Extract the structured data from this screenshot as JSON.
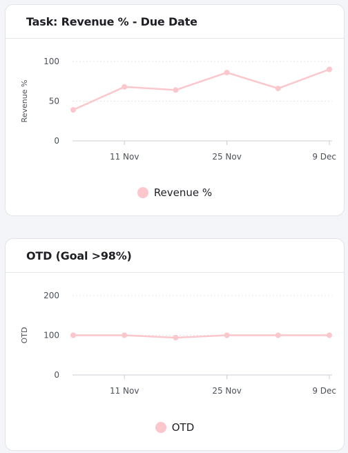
{
  "cards": [
    {
      "title": "Task: Revenue % - Due Date",
      "legend_label": "Revenue %",
      "legend_color": "#fbc6cc",
      "chart_data": {
        "type": "line",
        "title": "Task: Revenue % - Due Date",
        "xlabel": "",
        "ylabel": "Revenue %",
        "x_ticks": [
          "11 Nov",
          "25 Nov",
          "9 Dec"
        ],
        "y_ticks": [
          0,
          50,
          100
        ],
        "ylim": [
          0,
          100
        ],
        "grid": "horizontal dotted",
        "legend_position": "bottom-center",
        "series": [
          {
            "name": "Revenue %",
            "color": "#fbc6cc",
            "x": [
              "4 Nov",
              "11 Nov",
              "18 Nov",
              "25 Nov",
              "2 Dec",
              "9 Dec"
            ],
            "values": [
              39,
              68,
              64,
              86,
              66,
              90
            ]
          }
        ]
      }
    },
    {
      "title": "OTD (Goal >98%)",
      "legend_label": "OTD",
      "legend_color": "#fbc6cc",
      "chart_data": {
        "type": "line",
        "title": "OTD (Goal >98%)",
        "xlabel": "",
        "ylabel": "OTD",
        "x_ticks": [
          "11 Nov",
          "25 Nov",
          "9 Dec"
        ],
        "y_ticks": [
          0,
          100,
          200
        ],
        "ylim": [
          0,
          200
        ],
        "grid": "horizontal dotted",
        "legend_position": "bottom-center",
        "series": [
          {
            "name": "OTD",
            "color": "#fbc6cc",
            "x": [
              "4 Nov",
              "11 Nov",
              "18 Nov",
              "25 Nov",
              "2 Dec",
              "9 Dec"
            ],
            "values": [
              100,
              100,
              94,
              100,
              100,
              100
            ]
          }
        ]
      }
    }
  ]
}
